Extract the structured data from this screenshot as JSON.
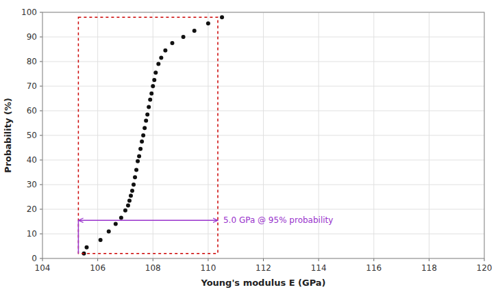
{
  "chart_data": {
    "type": "scatter",
    "xlabel": "Young's modulus E (GPa)",
    "ylabel": "Probability (%)",
    "x": [
      105.5,
      105.6,
      106.1,
      106.4,
      106.65,
      106.85,
      107.0,
      107.1,
      107.15,
      107.2,
      107.25,
      107.3,
      107.35,
      107.4,
      107.45,
      107.5,
      107.55,
      107.6,
      107.65,
      107.7,
      107.75,
      107.8,
      107.85,
      107.9,
      107.95,
      108.0,
      108.05,
      108.1,
      108.2,
      108.3,
      108.45,
      108.7,
      109.1,
      109.5,
      110.0,
      110.5
    ],
    "values": [
      2.0,
      4.5,
      7.5,
      11.0,
      14.0,
      16.5,
      19.5,
      21.5,
      23.5,
      25.5,
      27.5,
      30.0,
      33.0,
      36.0,
      39.5,
      41.5,
      44.5,
      47.5,
      50.0,
      53.0,
      56.0,
      58.5,
      61.5,
      64.5,
      67.0,
      70.0,
      72.5,
      75.5,
      79.0,
      81.5,
      84.5,
      87.5,
      90.0,
      92.5,
      95.5,
      98.0
    ],
    "color": "#111111",
    "marker": "circle",
    "xlim": [
      104,
      120
    ],
    "ylim": [
      0,
      100
    ],
    "xticks": [
      104,
      106,
      108,
      110,
      112,
      114,
      116,
      118,
      120
    ],
    "yticks": [
      0,
      10,
      20,
      30,
      40,
      50,
      60,
      70,
      80,
      90,
      100
    ],
    "grid": true,
    "rectangle": {
      "x": [
        105.3,
        110.35
      ],
      "y": [
        2.0,
        98.0
      ],
      "color": "#cc0000",
      "line_style": "dotted"
    },
    "range_arrow": {
      "x": [
        105.3,
        110.35
      ],
      "y": 15.5,
      "color": "#9933cc",
      "label": "5.0 GPa @ 95% probability"
    }
  }
}
